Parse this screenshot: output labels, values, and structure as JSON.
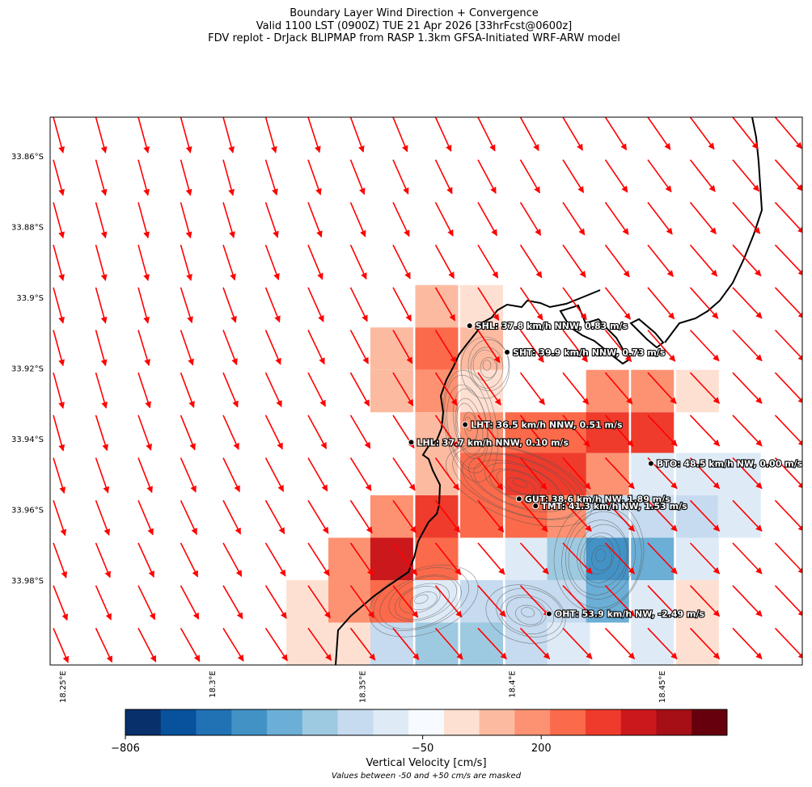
{
  "title": {
    "line1": "Boundary Layer Wind Direction + Convergence",
    "line2": "Valid 1100 LST (0900Z) TUE 21 Apr 2026 [33hrFcst@0600z]",
    "line3": "FDV replot - DrJack BLIPMAP from RASP 1.3km GFSA-Initiated WRF-ARW model"
  },
  "chart_data": {
    "type": "heatmap",
    "map": {
      "lon_range": [
        18.246,
        18.497
      ],
      "lat_range": [
        -34.004,
        -33.849
      ],
      "lat_ticks": [
        {
          "value": -33.86,
          "label": "33.86°S"
        },
        {
          "value": -33.88,
          "label": "33.88°S"
        },
        {
          "value": -33.9,
          "label": "33.9°S"
        },
        {
          "value": -33.92,
          "label": "33.92°S"
        },
        {
          "value": -33.94,
          "label": "33.94°S"
        },
        {
          "value": -33.96,
          "label": "33.96°S"
        },
        {
          "value": -33.98,
          "label": "33.98°S"
        }
      ],
      "lon_ticks": [
        {
          "value": 18.25,
          "label": "18.25°E"
        },
        {
          "value": 18.3,
          "label": "18.3°E"
        },
        {
          "value": 18.35,
          "label": "18.35°E"
        },
        {
          "value": 18.4,
          "label": "18.4°E"
        },
        {
          "value": 18.45,
          "label": "18.45°E"
        }
      ],
      "wind_vectors": "NNW to NW across domain, arrows in red",
      "wind_color": "#ff0000"
    },
    "stations": [
      {
        "code": "SHL",
        "label": "SHL: 37.8 km/h NNW, 0.83 m/s",
        "lon": 18.386,
        "lat": -33.908,
        "speed_kmh": 37.8,
        "dir": "NNW",
        "w_ms": 0.83
      },
      {
        "code": "SHT",
        "label": "SHT: 39.9 km/h NNW, 0.73 m/s",
        "lon": 18.3985,
        "lat": -33.9155,
        "speed_kmh": 39.9,
        "dir": "NNW",
        "w_ms": 0.73
      },
      {
        "code": "LHT",
        "label": "LHT: 36.5 km/h NNW, 0.51 m/s",
        "lon": 18.3845,
        "lat": -33.936,
        "speed_kmh": 36.5,
        "dir": "NNW",
        "w_ms": 0.51
      },
      {
        "code": "LHL",
        "label": "LHL: 37.7 km/h NNW, 0.10 m/s",
        "lon": 18.3665,
        "lat": -33.941,
        "speed_kmh": 37.7,
        "dir": "NNW",
        "w_ms": 0.1
      },
      {
        "code": "BTO",
        "label": "BTO: 48.5 km/h NW, 0.00 m/s",
        "lon": 18.4465,
        "lat": -33.947,
        "speed_kmh": 48.5,
        "dir": "NW",
        "w_ms": 0.0
      },
      {
        "code": "GUT",
        "label": "GUT: 38.6 km/h NW, 1.89 m/s",
        "lon": 18.4025,
        "lat": -33.957,
        "speed_kmh": 38.6,
        "dir": "NW",
        "w_ms": 1.89
      },
      {
        "code": "TMT",
        "label": "TMT: 41.3 km/h NW, 1.53 m/s",
        "lon": 18.408,
        "lat": -33.959,
        "speed_kmh": 41.3,
        "dir": "NW",
        "w_ms": 1.53
      },
      {
        "code": "OHT",
        "label": "OHT: 53.9 km/h NW, -2.49 m/s",
        "lon": 18.4125,
        "lat": -33.9895,
        "speed_kmh": 53.9,
        "dir": "NW",
        "w_ms": -2.49
      }
    ],
    "convergence_cells": [
      {
        "lon": 18.375,
        "lat": -33.9025,
        "level": 2
      },
      {
        "lon": 18.39,
        "lat": -33.9025,
        "level": 1
      },
      {
        "lon": 18.36,
        "lat": -33.9145,
        "level": 2
      },
      {
        "lon": 18.375,
        "lat": -33.9145,
        "level": 4
      },
      {
        "lon": 18.39,
        "lat": -33.9145,
        "level": 2
      },
      {
        "lon": 18.36,
        "lat": -33.9265,
        "level": 2
      },
      {
        "lon": 18.375,
        "lat": -33.9265,
        "level": 3
      },
      {
        "lon": 18.39,
        "lat": -33.9265,
        "level": 1
      },
      {
        "lon": 18.432,
        "lat": -33.9265,
        "level": 3
      },
      {
        "lon": 18.447,
        "lat": -33.9265,
        "level": 3
      },
      {
        "lon": 18.462,
        "lat": -33.9265,
        "level": 1
      },
      {
        "lon": 18.375,
        "lat": -33.9385,
        "level": 2
      },
      {
        "lon": 18.39,
        "lat": -33.9385,
        "level": 3
      },
      {
        "lon": 18.405,
        "lat": -33.9385,
        "level": 4
      },
      {
        "lon": 18.419,
        "lat": -33.9385,
        "level": 4
      },
      {
        "lon": 18.432,
        "lat": -33.9385,
        "level": 5
      },
      {
        "lon": 18.447,
        "lat": -33.9385,
        "level": 5
      },
      {
        "lon": 18.375,
        "lat": -33.95,
        "level": 2
      },
      {
        "lon": 18.39,
        "lat": -33.95,
        "level": 4
      },
      {
        "lon": 18.405,
        "lat": -33.95,
        "level": 5
      },
      {
        "lon": 18.419,
        "lat": -33.95,
        "level": 5
      },
      {
        "lon": 18.432,
        "lat": -33.95,
        "level": 3
      },
      {
        "lon": 18.447,
        "lat": -33.95,
        "level": -1
      },
      {
        "lon": 18.462,
        "lat": -33.95,
        "level": -1
      },
      {
        "lon": 18.476,
        "lat": -33.95,
        "level": -1
      },
      {
        "lon": 18.36,
        "lat": -33.962,
        "level": 3
      },
      {
        "lon": 18.375,
        "lat": -33.962,
        "level": 5
      },
      {
        "lon": 18.39,
        "lat": -33.962,
        "level": 4
      },
      {
        "lon": 18.405,
        "lat": -33.962,
        "level": 4
      },
      {
        "lon": 18.419,
        "lat": -33.962,
        "level": 3
      },
      {
        "lon": 18.432,
        "lat": -33.962,
        "level": -2
      },
      {
        "lon": 18.447,
        "lat": -33.962,
        "level": -2
      },
      {
        "lon": 18.462,
        "lat": -33.962,
        "level": -2
      },
      {
        "lon": 18.476,
        "lat": -33.962,
        "level": -1
      },
      {
        "lon": 18.346,
        "lat": -33.974,
        "level": 3
      },
      {
        "lon": 18.36,
        "lat": -33.974,
        "level": 6
      },
      {
        "lon": 18.375,
        "lat": -33.974,
        "level": 4
      },
      {
        "lon": 18.405,
        "lat": -33.974,
        "level": -1
      },
      {
        "lon": 18.419,
        "lat": -33.974,
        "level": -3
      },
      {
        "lon": 18.432,
        "lat": -33.974,
        "level": -5
      },
      {
        "lon": 18.447,
        "lat": -33.974,
        "level": -4
      },
      {
        "lon": 18.462,
        "lat": -33.974,
        "level": -1
      },
      {
        "lon": 18.332,
        "lat": -33.986,
        "level": 1
      },
      {
        "lon": 18.346,
        "lat": -33.986,
        "level": 3
      },
      {
        "lon": 18.36,
        "lat": -33.986,
        "level": 4
      },
      {
        "lon": 18.375,
        "lat": -33.986,
        "level": -1
      },
      {
        "lon": 18.39,
        "lat": -33.986,
        "level": -2
      },
      {
        "lon": 18.405,
        "lat": -33.986,
        "level": -2
      },
      {
        "lon": 18.419,
        "lat": -33.986,
        "level": -2
      },
      {
        "lon": 18.432,
        "lat": -33.986,
        "level": -4
      },
      {
        "lon": 18.447,
        "lat": -33.986,
        "level": -1
      },
      {
        "lon": 18.462,
        "lat": -33.986,
        "level": 1
      },
      {
        "lon": 18.332,
        "lat": -33.998,
        "level": 1
      },
      {
        "lon": 18.346,
        "lat": -33.998,
        "level": 1
      },
      {
        "lon": 18.36,
        "lat": -33.998,
        "level": -2
      },
      {
        "lon": 18.375,
        "lat": -33.998,
        "level": -3
      },
      {
        "lon": 18.39,
        "lat": -33.998,
        "level": -3
      },
      {
        "lon": 18.405,
        "lat": -33.998,
        "level": -2
      },
      {
        "lon": 18.419,
        "lat": -33.998,
        "level": -1
      },
      {
        "lon": 18.447,
        "lat": -33.998,
        "level": -1
      },
      {
        "lon": 18.462,
        "lat": -33.998,
        "level": 1
      }
    ],
    "colorbar": {
      "label": "Vertical Velocity [cm/s]",
      "note": "Values between -50 and +50 cm/s are masked",
      "tick_labels": [
        {
          "value": -806,
          "label": "−806"
        },
        {
          "value": -50,
          "label": "−50"
        },
        {
          "value": 200,
          "label": "200"
        }
      ],
      "colors": [
        "#08306b",
        "#08519c",
        "#2171b5",
        "#4292c6",
        "#6baed6",
        "#9ecae1",
        "#c6dbef",
        "#deebf7",
        "#f7fbff",
        "#fee0d2",
        "#fcbba1",
        "#fc9272",
        "#fb6a4a",
        "#ef3b2c",
        "#cb181d",
        "#a50f15",
        "#67000d"
      ]
    }
  }
}
